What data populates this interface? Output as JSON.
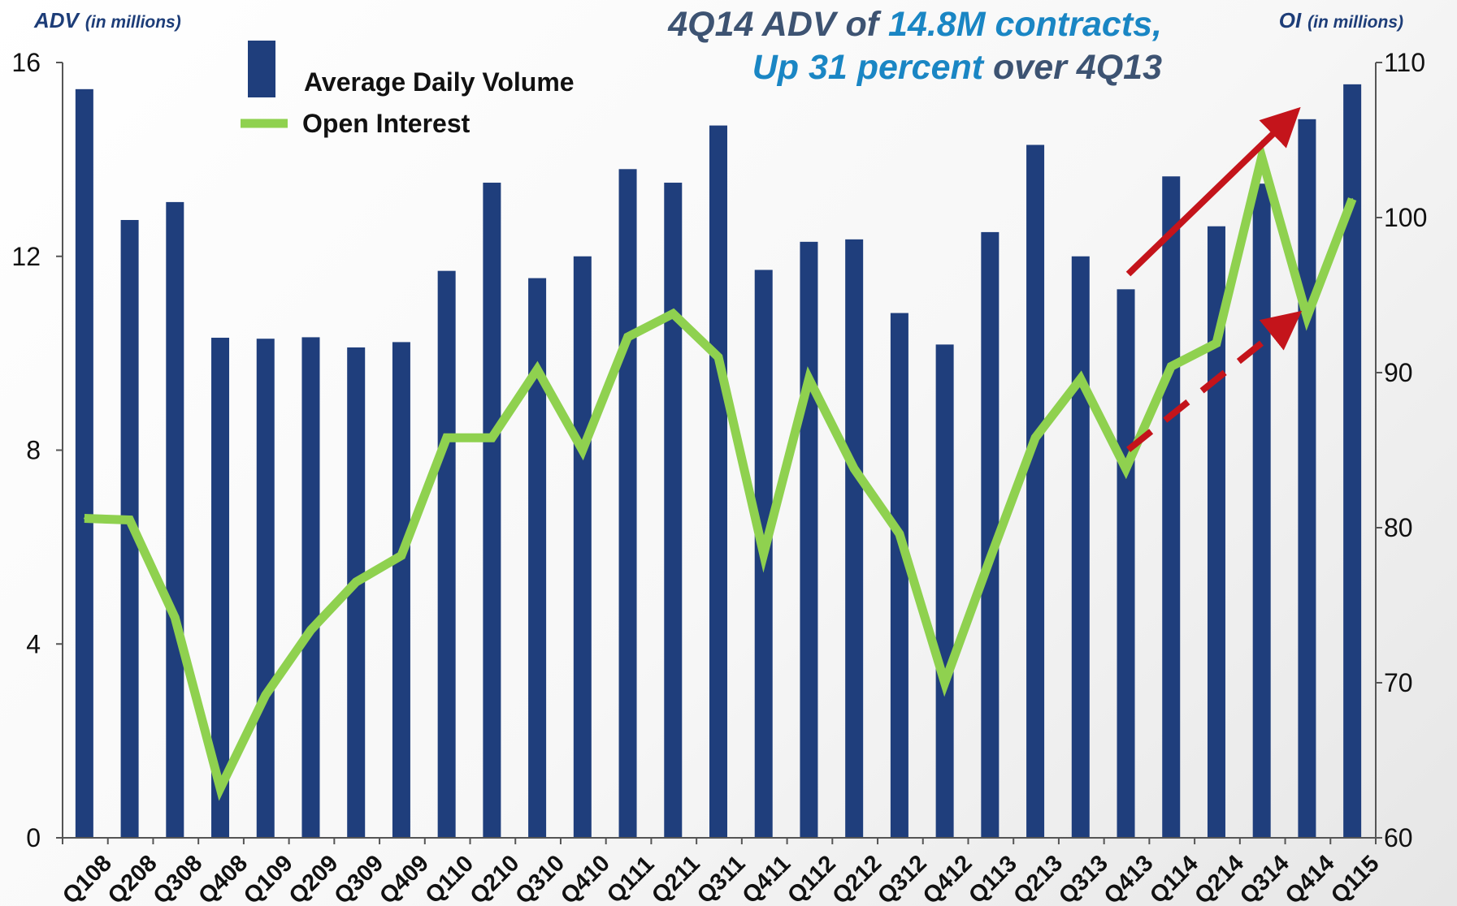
{
  "colors": {
    "bar": "#1f3e7c",
    "line": "#8fd14f",
    "arrow": "#c4141b",
    "title_dark": "#3d5372",
    "title_accent": "#1a86c4"
  },
  "title": {
    "line1": [
      {
        "text": "4Q14 ADV of ",
        "style": "dark"
      },
      {
        "text": "14.8M contracts,",
        "style": "accent"
      }
    ],
    "line2": [
      {
        "text": "Up 31 percent ",
        "style": "accent"
      },
      {
        "text": "over 4Q13",
        "style": "dark"
      }
    ]
  },
  "chart_data": {
    "type": "bar+line",
    "categories": [
      "1Q108",
      "2Q208",
      "3Q308",
      "4Q408",
      "1Q109",
      "2Q209",
      "3Q309",
      "4Q409",
      "1Q110",
      "2Q210",
      "3Q310",
      "4Q410",
      "1Q111",
      "2Q211",
      "3Q311",
      "4Q411",
      "1Q112",
      "2Q212",
      "3Q312",
      "4Q412",
      "1Q113",
      "2Q213",
      "3Q313",
      "4Q413",
      "1Q114",
      "2Q214",
      "3Q314",
      "4Q414",
      "1Q115"
    ],
    "tick_labels": [
      "Q108",
      "Q208",
      "Q308",
      "Q408",
      "Q109",
      "Q209",
      "Q309",
      "Q409",
      "Q110",
      "Q210",
      "Q310",
      "Q410",
      "Q111",
      "Q211",
      "Q311",
      "Q411",
      "Q112",
      "Q212",
      "Q312",
      "Q412",
      "Q113",
      "Q213",
      "Q313",
      "Q413",
      "Q114",
      "Q214",
      "Q314",
      "Q414",
      "Q115"
    ],
    "series": [
      {
        "name": "Average Daily Volume",
        "type": "bar",
        "axis": "left",
        "values": [
          15.45,
          12.75,
          13.12,
          10.32,
          10.3,
          10.33,
          10.12,
          10.23,
          11.7,
          13.52,
          11.55,
          12.0,
          13.8,
          13.52,
          14.7,
          11.72,
          12.3,
          12.35,
          10.83,
          10.18,
          12.5,
          14.3,
          12.0,
          11.32,
          13.65,
          12.62,
          13.5,
          14.83,
          15.55
        ]
      },
      {
        "name": "Open Interest",
        "type": "line",
        "axis": "right",
        "values": [
          80.6,
          80.5,
          74.2,
          63.2,
          69.2,
          73.4,
          76.5,
          78.2,
          85.8,
          85.8,
          90.2,
          85.0,
          92.3,
          93.8,
          91.0,
          78.3,
          89.6,
          83.8,
          79.6,
          70.0,
          78.0,
          85.8,
          89.6,
          83.8,
          90.4,
          91.9,
          103.9,
          93.6,
          101.2
        ]
      }
    ],
    "y_left": {
      "label": "ADV",
      "unit": "(in millions)",
      "min": 0,
      "max": 16,
      "ticks": [
        0,
        4,
        8,
        12,
        16
      ]
    },
    "y_right": {
      "label": "OI",
      "unit": "(in millions)",
      "min": 60,
      "max": 110,
      "ticks": [
        60,
        70,
        80,
        90,
        100,
        110
      ]
    },
    "legend": {
      "position": "top-left"
    },
    "grid": false,
    "annotations": [
      {
        "type": "arrow",
        "style": "solid",
        "from_category": "4Q413",
        "to_category": "4Q414",
        "axis": "left",
        "from_value": 11.4,
        "to_value": 14.8
      },
      {
        "type": "arrow",
        "style": "dashed",
        "from_category": "4Q413",
        "to_category": "4Q414",
        "axis": "right",
        "from_value": 84.3,
        "to_value": 93.2
      }
    ]
  }
}
